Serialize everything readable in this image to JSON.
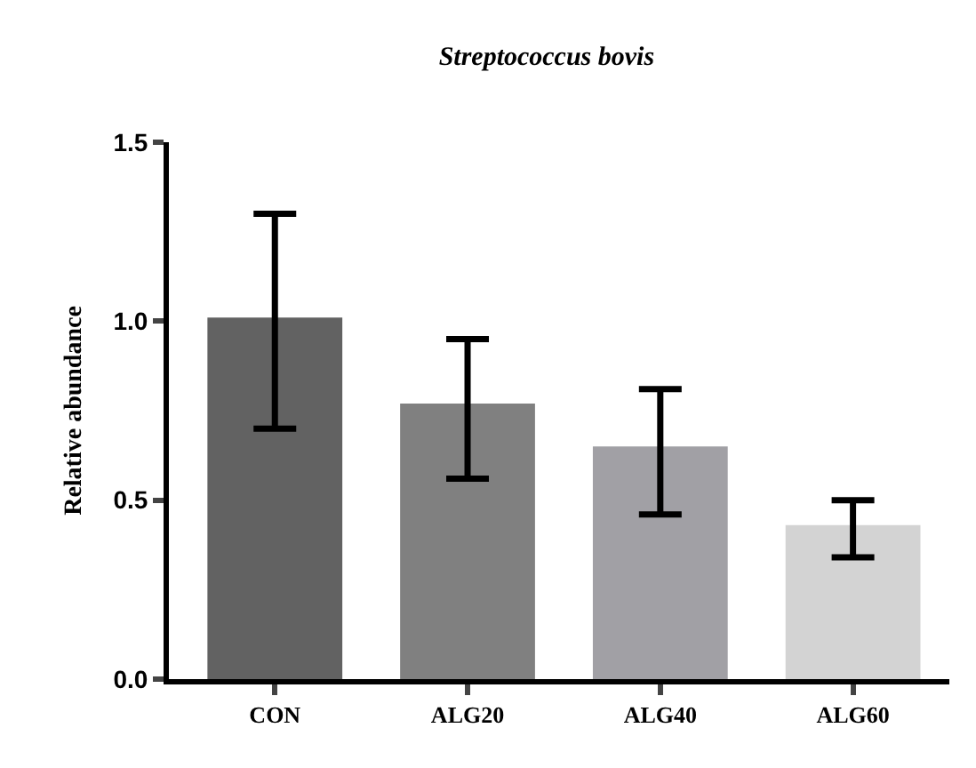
{
  "chart_data": {
    "type": "bar",
    "title": "Streptococcus bovis",
    "ylabel": "Relative abundance",
    "categories": [
      "CON",
      "ALG20",
      "ALG40",
      "ALG60"
    ],
    "values": [
      1.01,
      0.77,
      0.65,
      0.43
    ],
    "colors": [
      "#626262",
      "#808080",
      "#a1a0a5",
      "#d3d3d3"
    ],
    "errors": [
      [
        0.7,
        1.3
      ],
      [
        0.56,
        0.95
      ],
      [
        0.46,
        0.81
      ],
      [
        0.34,
        0.5
      ]
    ],
    "ylim": [
      0,
      1.5
    ],
    "yticks": [
      {
        "value": 0,
        "label": "0.0"
      },
      0.5,
      {
        "value": 1,
        "label": "1.0"
      },
      1.5
    ]
  }
}
